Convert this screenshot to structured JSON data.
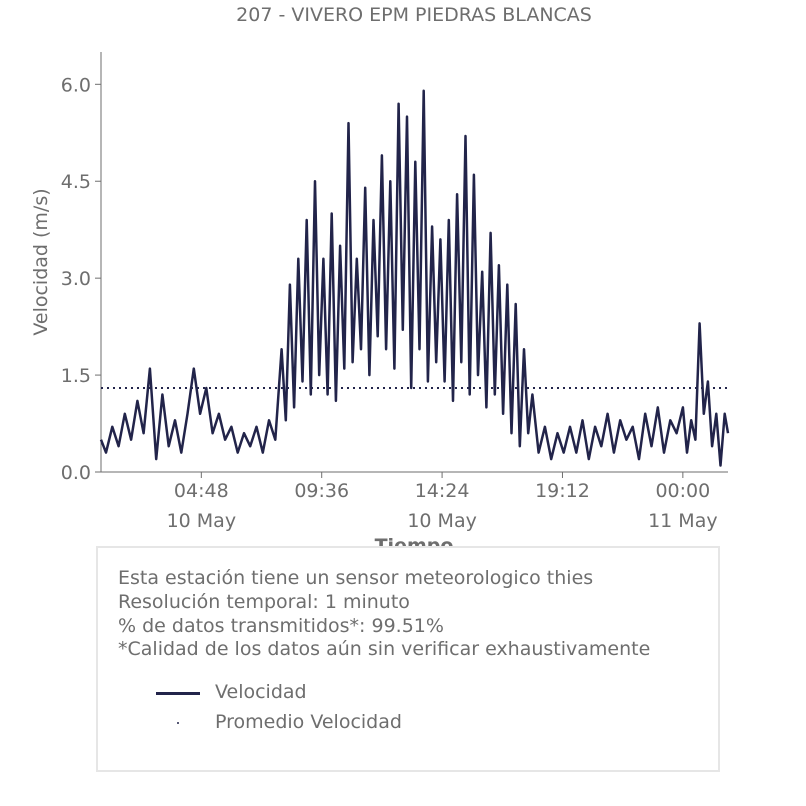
{
  "chart_data": {
    "type": "line",
    "title": "207 - VIVERO EPM PIEDRAS BLANCAS",
    "xlabel": "Tiempo",
    "ylabel": "Velocidad (m/s)",
    "ylim": [
      0,
      6.5
    ],
    "y_ticks": [
      "0.0",
      "1.5",
      "3.0",
      "4.5",
      "6.0"
    ],
    "x_range": [
      "2024-05-10T00:48",
      "2024-05-11T01:48"
    ],
    "x_ticks": [
      {
        "time": "2024-05-10T04:48",
        "label": "04:48",
        "sublabel": "10 May"
      },
      {
        "time": "2024-05-10T09:36",
        "label": "09:36",
        "sublabel": ""
      },
      {
        "time": "2024-05-10T14:24",
        "label": "14:24",
        "sublabel": "10 May"
      },
      {
        "time": "2024-05-10T19:12",
        "label": "19:12",
        "sublabel": ""
      },
      {
        "time": "2024-05-11T00:00",
        "label": "00:00",
        "sublabel": "11 May"
      }
    ],
    "grid": false,
    "series": [
      {
        "name": "Velocidad",
        "color": "#22244a",
        "style": "solid",
        "points": [
          [
            "2024-05-10T00:48",
            0.5
          ],
          [
            "2024-05-10T01:00",
            0.3
          ],
          [
            "2024-05-10T01:15",
            0.7
          ],
          [
            "2024-05-10T01:30",
            0.4
          ],
          [
            "2024-05-10T01:45",
            0.9
          ],
          [
            "2024-05-10T02:00",
            0.5
          ],
          [
            "2024-05-10T02:15",
            1.1
          ],
          [
            "2024-05-10T02:30",
            0.6
          ],
          [
            "2024-05-10T02:45",
            1.6
          ],
          [
            "2024-05-10T03:00",
            0.2
          ],
          [
            "2024-05-10T03:15",
            1.2
          ],
          [
            "2024-05-10T03:30",
            0.4
          ],
          [
            "2024-05-10T03:45",
            0.8
          ],
          [
            "2024-05-10T04:00",
            0.3
          ],
          [
            "2024-05-10T04:15",
            0.9
          ],
          [
            "2024-05-10T04:30",
            1.6
          ],
          [
            "2024-05-10T04:45",
            0.9
          ],
          [
            "2024-05-10T05:00",
            1.3
          ],
          [
            "2024-05-10T05:15",
            0.6
          ],
          [
            "2024-05-10T05:30",
            0.9
          ],
          [
            "2024-05-10T05:45",
            0.5
          ],
          [
            "2024-05-10T06:00",
            0.7
          ],
          [
            "2024-05-10T06:15",
            0.3
          ],
          [
            "2024-05-10T06:30",
            0.6
          ],
          [
            "2024-05-10T06:45",
            0.4
          ],
          [
            "2024-05-10T07:00",
            0.7
          ],
          [
            "2024-05-10T07:15",
            0.3
          ],
          [
            "2024-05-10T07:30",
            0.8
          ],
          [
            "2024-05-10T07:45",
            0.5
          ],
          [
            "2024-05-10T08:00",
            1.9
          ],
          [
            "2024-05-10T08:10",
            0.8
          ],
          [
            "2024-05-10T08:20",
            2.9
          ],
          [
            "2024-05-10T08:30",
            1.0
          ],
          [
            "2024-05-10T08:40",
            3.3
          ],
          [
            "2024-05-10T08:50",
            1.4
          ],
          [
            "2024-05-10T09:00",
            3.9
          ],
          [
            "2024-05-10T09:10",
            1.2
          ],
          [
            "2024-05-10T09:20",
            4.5
          ],
          [
            "2024-05-10T09:30",
            1.5
          ],
          [
            "2024-05-10T09:40",
            3.3
          ],
          [
            "2024-05-10T09:50",
            1.2
          ],
          [
            "2024-05-10T10:00",
            4.0
          ],
          [
            "2024-05-10T10:10",
            1.1
          ],
          [
            "2024-05-10T10:20",
            3.5
          ],
          [
            "2024-05-10T10:30",
            1.6
          ],
          [
            "2024-05-10T10:40",
            5.4
          ],
          [
            "2024-05-10T10:50",
            1.7
          ],
          [
            "2024-05-10T11:00",
            3.3
          ],
          [
            "2024-05-10T11:10",
            1.9
          ],
          [
            "2024-05-10T11:20",
            4.4
          ],
          [
            "2024-05-10T11:30",
            1.5
          ],
          [
            "2024-05-10T11:40",
            3.9
          ],
          [
            "2024-05-10T11:50",
            2.1
          ],
          [
            "2024-05-10T12:00",
            4.9
          ],
          [
            "2024-05-10T12:10",
            1.9
          ],
          [
            "2024-05-10T12:20",
            4.5
          ],
          [
            "2024-05-10T12:30",
            1.6
          ],
          [
            "2024-05-10T12:40",
            5.7
          ],
          [
            "2024-05-10T12:50",
            2.2
          ],
          [
            "2024-05-10T13:00",
            5.5
          ],
          [
            "2024-05-10T13:10",
            1.3
          ],
          [
            "2024-05-10T13:20",
            4.8
          ],
          [
            "2024-05-10T13:30",
            1.9
          ],
          [
            "2024-05-10T13:40",
            5.9
          ],
          [
            "2024-05-10T13:50",
            1.4
          ],
          [
            "2024-05-10T14:00",
            3.8
          ],
          [
            "2024-05-10T14:10",
            1.7
          ],
          [
            "2024-05-10T14:20",
            3.6
          ],
          [
            "2024-05-10T14:30",
            1.4
          ],
          [
            "2024-05-10T14:40",
            3.9
          ],
          [
            "2024-05-10T14:50",
            1.1
          ],
          [
            "2024-05-10T15:00",
            4.3
          ],
          [
            "2024-05-10T15:10",
            1.7
          ],
          [
            "2024-05-10T15:20",
            5.2
          ],
          [
            "2024-05-10T15:30",
            1.2
          ],
          [
            "2024-05-10T15:40",
            4.6
          ],
          [
            "2024-05-10T15:50",
            1.5
          ],
          [
            "2024-05-10T16:00",
            3.1
          ],
          [
            "2024-05-10T16:10",
            1.0
          ],
          [
            "2024-05-10T16:20",
            3.7
          ],
          [
            "2024-05-10T16:30",
            1.2
          ],
          [
            "2024-05-10T16:40",
            3.2
          ],
          [
            "2024-05-10T16:50",
            0.9
          ],
          [
            "2024-05-10T17:00",
            2.9
          ],
          [
            "2024-05-10T17:10",
            0.6
          ],
          [
            "2024-05-10T17:20",
            2.6
          ],
          [
            "2024-05-10T17:30",
            0.4
          ],
          [
            "2024-05-10T17:40",
            1.9
          ],
          [
            "2024-05-10T17:50",
            0.6
          ],
          [
            "2024-05-10T18:00",
            1.2
          ],
          [
            "2024-05-10T18:15",
            0.3
          ],
          [
            "2024-05-10T18:30",
            0.7
          ],
          [
            "2024-05-10T18:45",
            0.2
          ],
          [
            "2024-05-10T19:00",
            0.6
          ],
          [
            "2024-05-10T19:15",
            0.3
          ],
          [
            "2024-05-10T19:30",
            0.7
          ],
          [
            "2024-05-10T19:45",
            0.3
          ],
          [
            "2024-05-10T20:00",
            0.8
          ],
          [
            "2024-05-10T20:15",
            0.2
          ],
          [
            "2024-05-10T20:30",
            0.7
          ],
          [
            "2024-05-10T20:45",
            0.4
          ],
          [
            "2024-05-10T21:00",
            0.9
          ],
          [
            "2024-05-10T21:15",
            0.3
          ],
          [
            "2024-05-10T21:30",
            0.8
          ],
          [
            "2024-05-10T21:45",
            0.5
          ],
          [
            "2024-05-10T22:00",
            0.7
          ],
          [
            "2024-05-10T22:15",
            0.2
          ],
          [
            "2024-05-10T22:30",
            0.9
          ],
          [
            "2024-05-10T22:45",
            0.4
          ],
          [
            "2024-05-10T23:00",
            1.0
          ],
          [
            "2024-05-10T23:15",
            0.3
          ],
          [
            "2024-05-10T23:30",
            0.8
          ],
          [
            "2024-05-10T23:45",
            0.6
          ],
          [
            "2024-05-11T00:00",
            1.0
          ],
          [
            "2024-05-11T00:10",
            0.3
          ],
          [
            "2024-05-11T00:20",
            0.8
          ],
          [
            "2024-05-11T00:30",
            0.5
          ],
          [
            "2024-05-11T00:40",
            2.3
          ],
          [
            "2024-05-11T00:50",
            0.9
          ],
          [
            "2024-05-11T01:00",
            1.4
          ],
          [
            "2024-05-11T01:10",
            0.4
          ],
          [
            "2024-05-11T01:20",
            0.9
          ],
          [
            "2024-05-11T01:30",
            0.1
          ],
          [
            "2024-05-11T01:40",
            0.9
          ],
          [
            "2024-05-11T01:48",
            0.6
          ]
        ]
      },
      {
        "name": "Promedio Velocidad",
        "color": "#22244a",
        "style": "dotted",
        "value": 1.3
      }
    ],
    "legend_placement": "below"
  },
  "info": {
    "lines": [
      "Esta estación tiene un sensor meteorologico thies",
      "Resolución temporal: 1 minuto",
      "% de datos transmitidos*: 99.51%",
      "*Calidad de los datos aún sin verificar exhaustivamente"
    ]
  },
  "legend": {
    "items": [
      {
        "label": "Velocidad"
      },
      {
        "label": "Promedio Velocidad"
      }
    ]
  }
}
